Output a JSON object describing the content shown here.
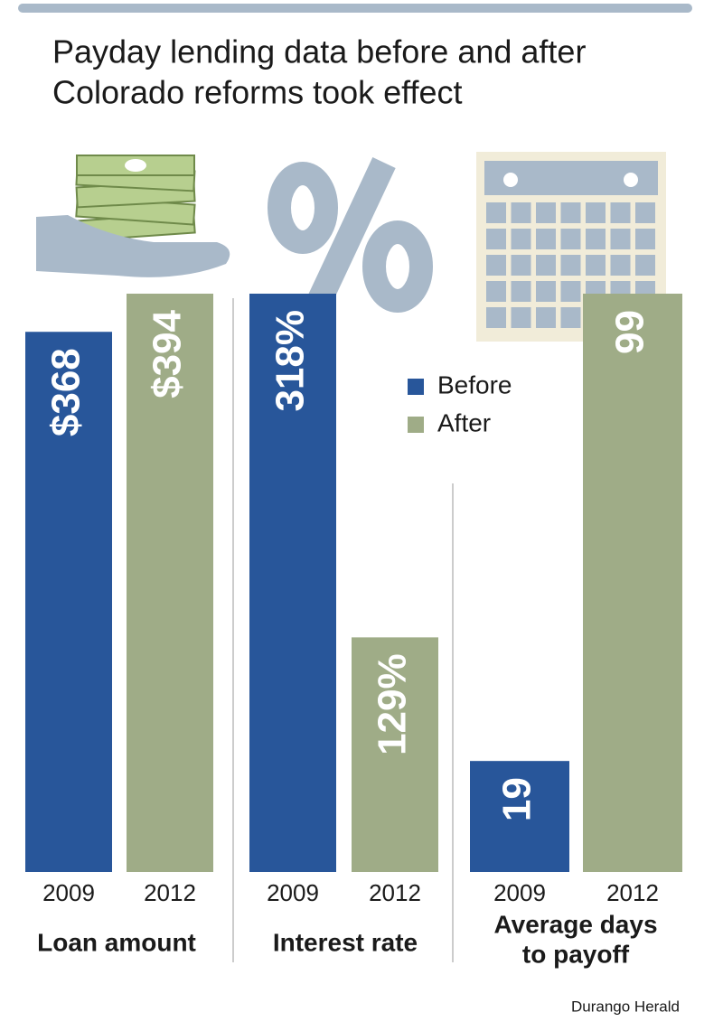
{
  "title": [
    "Payday lending data before and after",
    "Colorado reforms took effect"
  ],
  "legend": [
    {
      "name": "Before",
      "color": "#28569a"
    },
    {
      "name": "After",
      "color": "#9fac87"
    }
  ],
  "source": "Durango Herald",
  "chart_data": [
    {
      "type": "bar",
      "xlabel": [
        "Loan amount"
      ],
      "categories": [
        "2009",
        "2012"
      ],
      "values": [
        368,
        394
      ],
      "value_labels": [
        "$368",
        "$394"
      ],
      "colors": [
        "#28569a",
        "#9fac87"
      ]
    },
    {
      "type": "bar",
      "xlabel": [
        "Interest rate"
      ],
      "categories": [
        "2009",
        "2012"
      ],
      "values": [
        318,
        129
      ],
      "value_labels": [
        "318%",
        "129%"
      ],
      "colors": [
        "#28569a",
        "#9fac87"
      ]
    },
    {
      "type": "bar",
      "xlabel": [
        "Average days",
        "to payoff"
      ],
      "categories": [
        "2009",
        "2012"
      ],
      "values": [
        19,
        99
      ],
      "value_labels": [
        "19",
        "99"
      ],
      "colors": [
        "#28569a",
        "#9fac87"
      ]
    }
  ]
}
